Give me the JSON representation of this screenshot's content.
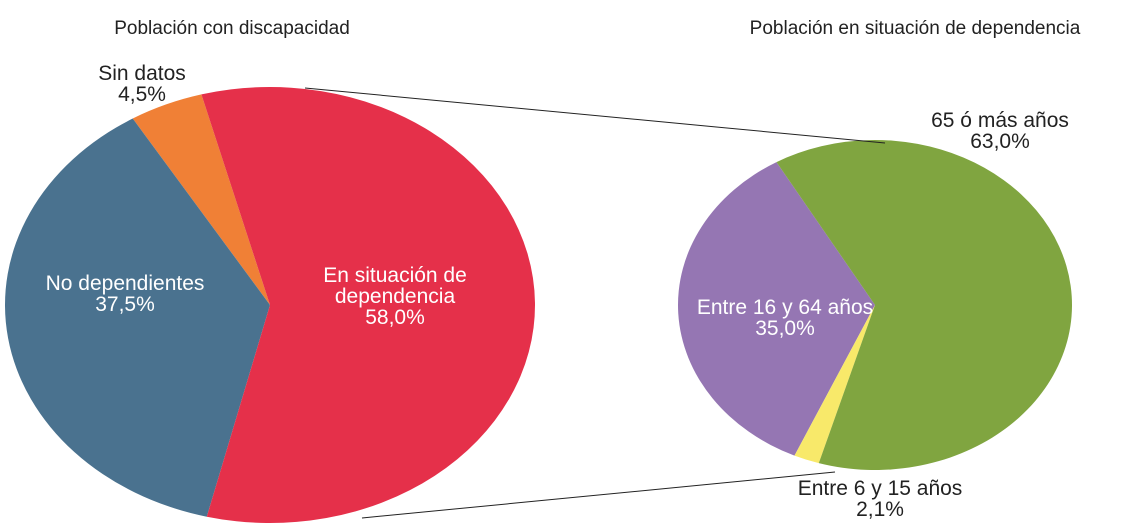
{
  "chart_data": [
    {
      "type": "pie",
      "title": "Población con discapacidad",
      "categories": [
        "En situación de dependencia",
        "No dependientes",
        "Sin datos"
      ],
      "values": [
        58.0,
        37.5,
        4.5
      ],
      "value_labels": [
        "58,0%",
        "37,5%",
        "4,5%"
      ],
      "colors": [
        "#e5304a",
        "#4a728f",
        "#f08036"
      ]
    },
    {
      "type": "pie",
      "title": "Población en situación de dependencia",
      "categories": [
        "65 ó más años",
        "Entre 6 y 15 años",
        "Entre 16 y 64 años"
      ],
      "values": [
        63.0,
        2.1,
        35.0
      ],
      "value_labels": [
        "63,0%",
        "2,1%",
        "35,0%"
      ],
      "colors": [
        "#80a540",
        "#f8e96a",
        "#9576b3"
      ]
    }
  ]
}
